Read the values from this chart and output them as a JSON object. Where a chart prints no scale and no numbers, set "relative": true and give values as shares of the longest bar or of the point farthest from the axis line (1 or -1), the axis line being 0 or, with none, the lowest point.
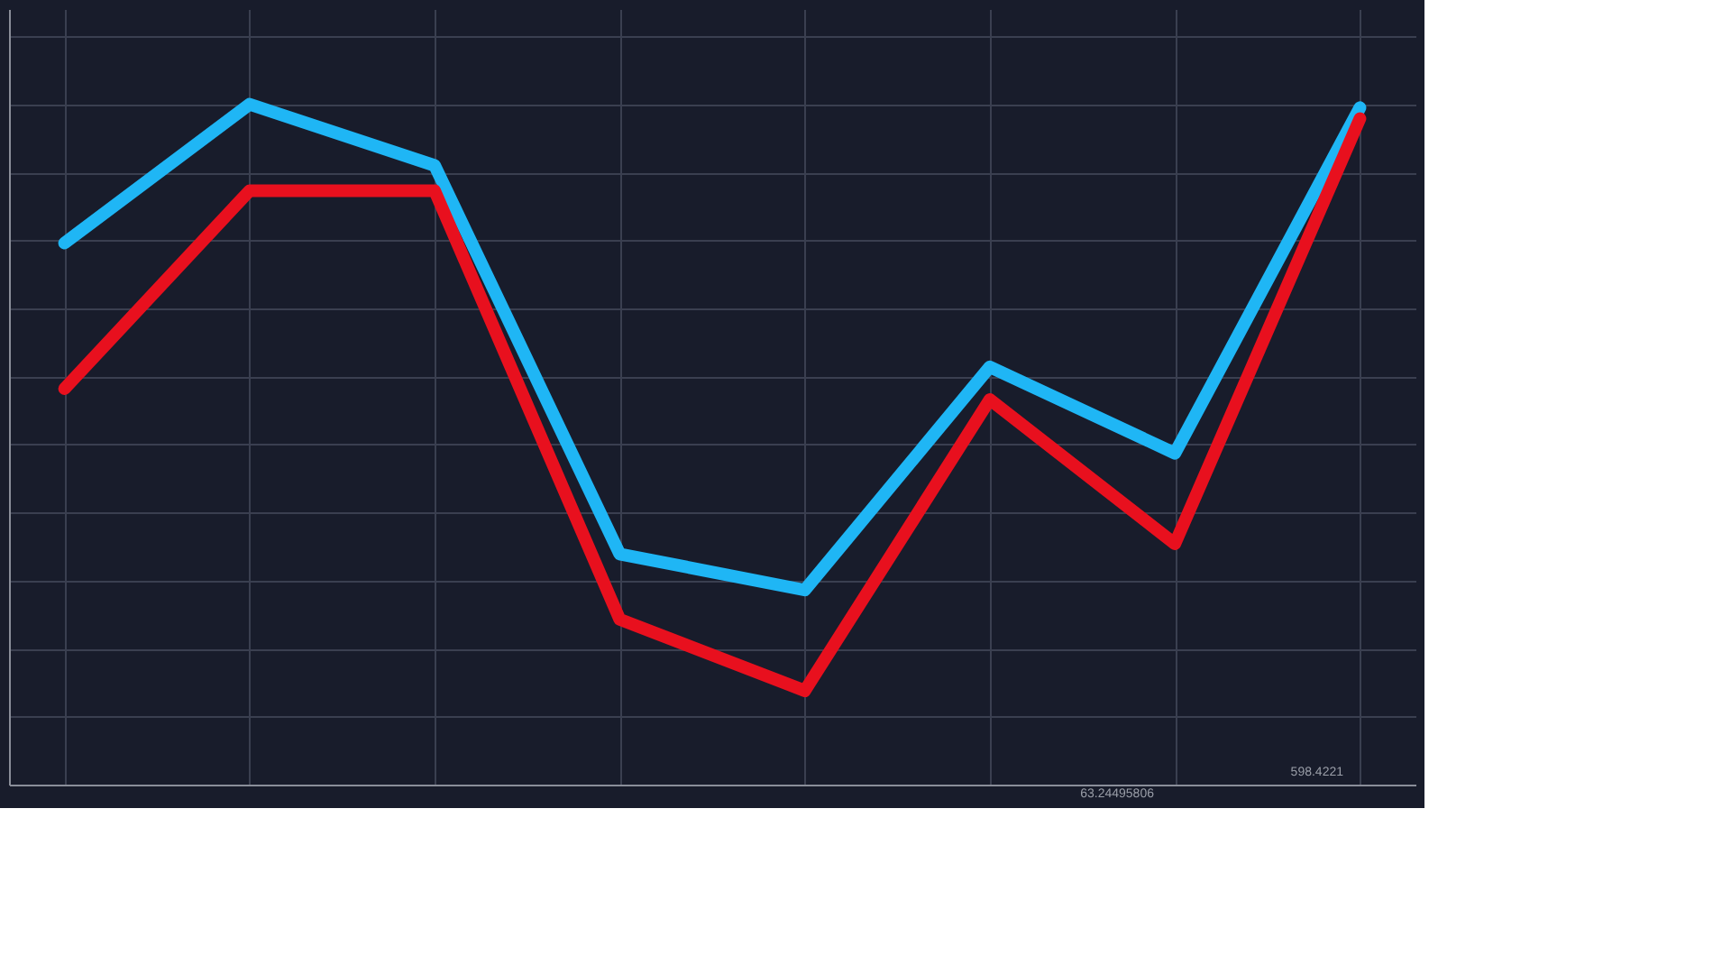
{
  "chart_data": {
    "type": "line",
    "relative": true,
    "categories": [
      null,
      null,
      null,
      null,
      null,
      null,
      null,
      null
    ],
    "series": [
      {
        "color": "#1fb6f5",
        "values": [
          0.796,
          1,
          0.91,
          0.339,
          0.286,
          0.614,
          0.487,
          0.995
        ]
      },
      {
        "color": "#e8101e",
        "values": [
          0.582,
          0.873,
          0.873,
          0.243,
          0.138,
          0.566,
          0.354,
          0.979
        ]
      }
    ],
    "annotations": [
      "63.24495806",
      "598.4221"
    ],
    "grid": true,
    "marker": "none",
    "line_style": "solid",
    "tick_labels": false
  }
}
